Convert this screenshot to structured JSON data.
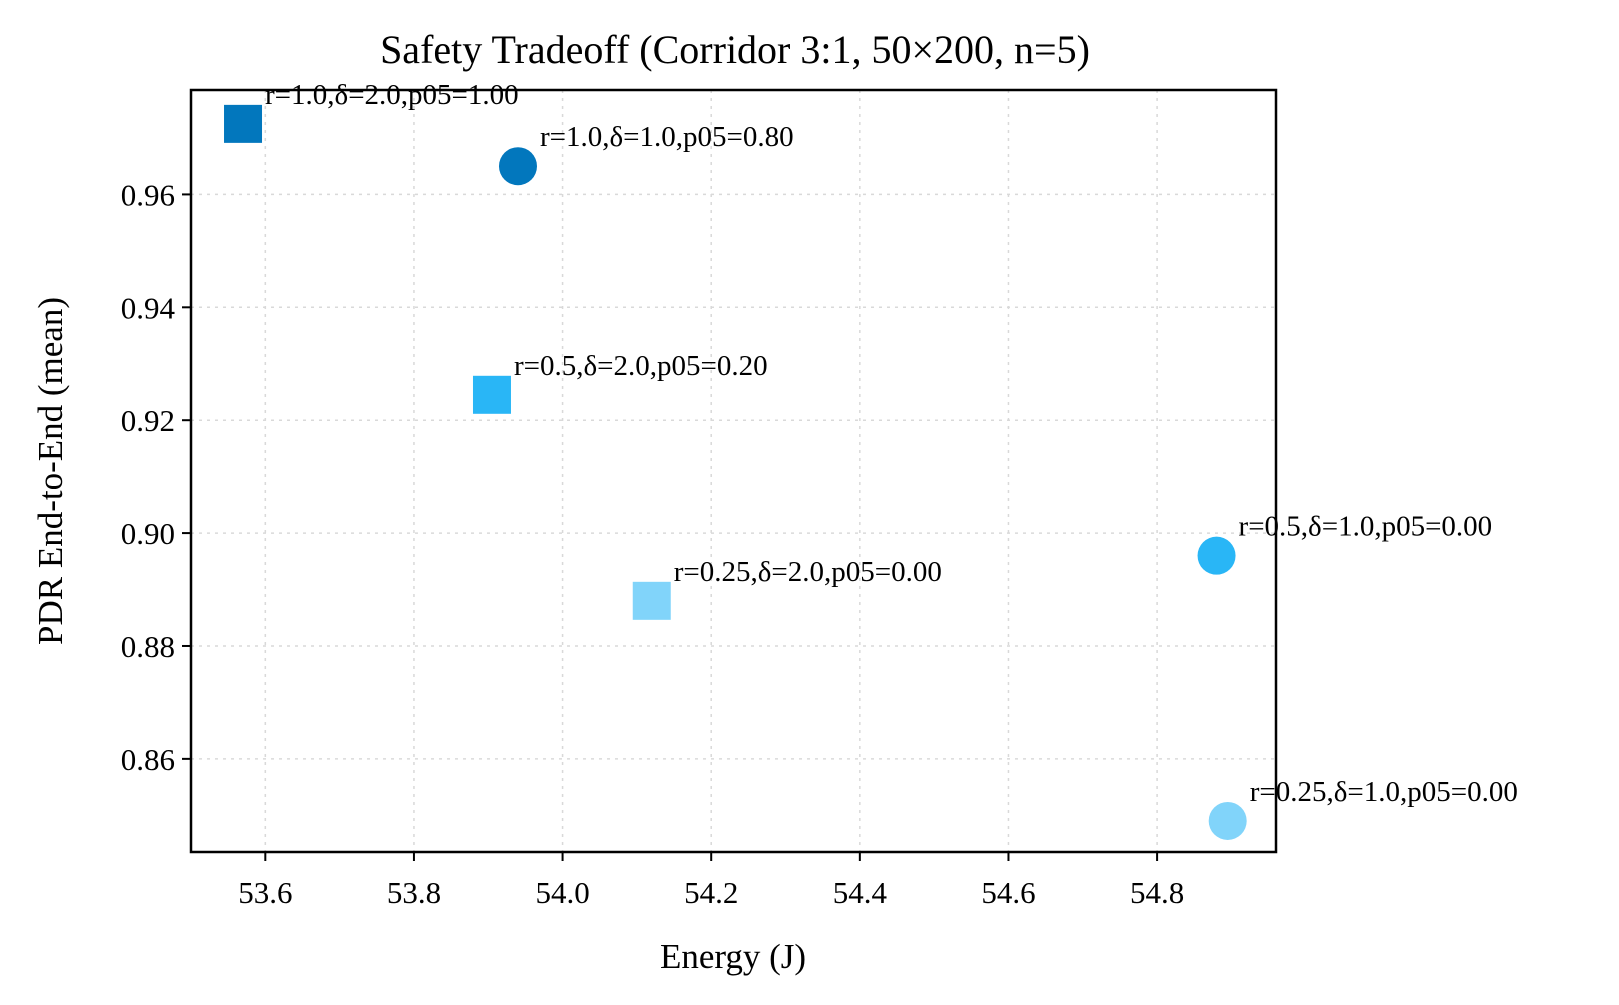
{
  "chart_data": {
    "type": "scatter",
    "title": "Safety Tradeoff (Corridor 3:1, 50×200, n=5)",
    "xlabel": "Energy (J)",
    "ylabel": "PDR End-to-End (mean)",
    "xlim": [
      53.5,
      54.96
    ],
    "ylim": [
      0.8435,
      0.9785
    ],
    "xticks": [
      53.6,
      53.8,
      54.0,
      54.2,
      54.4,
      54.6,
      54.8
    ],
    "xtick_labels": [
      "53.6",
      "53.8",
      "54.0",
      "54.2",
      "54.4",
      "54.6",
      "54.8"
    ],
    "yticks": [
      0.86,
      0.88,
      0.9,
      0.92,
      0.94,
      0.96
    ],
    "ytick_labels": [
      "0.86",
      "0.88",
      "0.90",
      "0.92",
      "0.94",
      "0.96"
    ],
    "grid": true,
    "points": [
      {
        "x": 53.57,
        "y": 0.9725,
        "marker": "square",
        "color": "#0277bd",
        "label": "r=1.0,δ=2.0,p05=1.00"
      },
      {
        "x": 53.94,
        "y": 0.965,
        "marker": "circle",
        "color": "#0277bd",
        "label": "r=1.0,δ=1.0,p05=0.80"
      },
      {
        "x": 53.905,
        "y": 0.9245,
        "marker": "square",
        "color": "#29b6f6",
        "label": "r=0.5,δ=2.0,p05=0.20"
      },
      {
        "x": 54.12,
        "y": 0.888,
        "marker": "square",
        "color": "#81d4fa",
        "label": "r=0.25,δ=2.0,p05=0.00"
      },
      {
        "x": 54.88,
        "y": 0.896,
        "marker": "circle",
        "color": "#29b6f6",
        "label": "r=0.5,δ=1.0,p05=0.00"
      },
      {
        "x": 54.895,
        "y": 0.849,
        "marker": "circle",
        "color": "#81d4fa",
        "label": "r=0.25,δ=1.0,p05=0.00"
      }
    ]
  }
}
